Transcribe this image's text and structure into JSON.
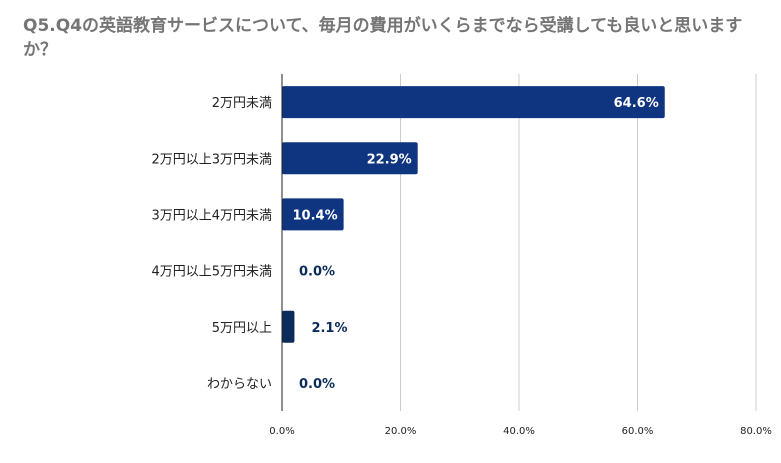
{
  "chart_data": {
    "type": "bar",
    "orientation": "horizontal",
    "title": "Q5.Q4の英語教育サービスについて、毎月の費用がいくらまでなら受講しても良いと思いますか？",
    "categories": [
      "2万円未満",
      "2万円以上3万円未満",
      "3万円以上4万円未満",
      "4万円以上5万円未満",
      "5万円以上",
      "わからない"
    ],
    "values": [
      64.6,
      22.9,
      10.4,
      0.0,
      2.1,
      0.0
    ],
    "data_labels": [
      "64.6%",
      "22.9%",
      "10.4%",
      "0.0%",
      "2.1%",
      "0.0%"
    ],
    "xlim": [
      0,
      80
    ],
    "x_ticks": [
      0,
      20,
      40,
      60,
      80
    ],
    "x_tick_labels": [
      "0.0%",
      "20.0%",
      "40.0%",
      "60.0%",
      "80.0%"
    ],
    "xlabel": "",
    "ylabel": "",
    "grid": true,
    "legend": "none",
    "colors": {
      "bar": "#0f3580",
      "bar_small": "#0b2c5a",
      "label_inside": "#ffffff",
      "label_outside": "#0b2c5a",
      "title": "#757575",
      "grid": "#cccccc",
      "axis": "#222222"
    }
  }
}
